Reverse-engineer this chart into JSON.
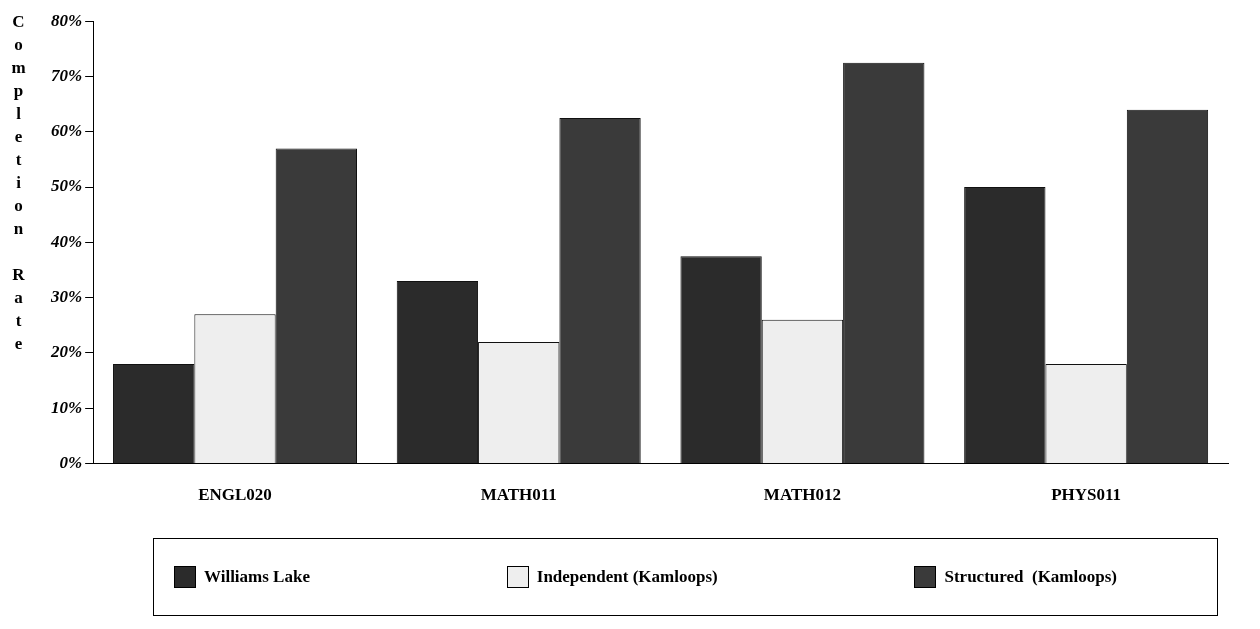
{
  "chart_data": {
    "type": "bar",
    "ylabel": "Completion Rate",
    "categories": [
      "ENGL020",
      "MATH011",
      "MATH012",
      "PHYS011"
    ],
    "series": [
      {
        "name": "Williams Lake",
        "color": "#2b2b2b",
        "values": [
          18,
          33,
          37.5,
          50
        ]
      },
      {
        "name": "Independent (Kamloops)",
        "color": "#eeeeee",
        "values": [
          27,
          22,
          26,
          18
        ]
      },
      {
        "name": "Structured  (Kamloops)",
        "color": "#3a3a3a",
        "values": [
          57,
          62.5,
          72.5,
          64
        ]
      }
    ],
    "ylim": [
      0,
      80
    ],
    "yticks": [
      {
        "value": 0,
        "label": "0%"
      },
      {
        "value": 10,
        "label": "10%"
      },
      {
        "value": 20,
        "label": "20%"
      },
      {
        "value": 30,
        "label": "30%"
      },
      {
        "value": 40,
        "label": "40%"
      },
      {
        "value": 50,
        "label": "50%"
      },
      {
        "value": 60,
        "label": "60%"
      },
      {
        "value": 70,
        "label": "70%"
      },
      {
        "value": 80,
        "label": "80%"
      }
    ],
    "grid": false,
    "legend": "bottom"
  }
}
